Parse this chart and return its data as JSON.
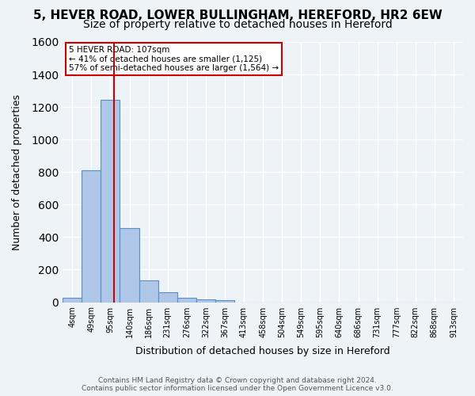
{
  "title_line1": "5, HEVER ROAD, LOWER BULLINGHAM, HEREFORD, HR2 6EW",
  "title_line2": "Size of property relative to detached houses in Hereford",
  "xlabel": "Distribution of detached houses by size in Hereford",
  "ylabel": "Number of detached properties",
  "footer_line1": "Contains HM Land Registry data © Crown copyright and database right 2024.",
  "footer_line2": "Contains public sector information licensed under the Open Government Licence v3.0.",
  "bin_labels": [
    "4sqm",
    "49sqm",
    "95sqm",
    "140sqm",
    "186sqm",
    "231sqm",
    "276sqm",
    "322sqm",
    "367sqm",
    "413sqm",
    "458sqm",
    "504sqm",
    "549sqm",
    "595sqm",
    "640sqm",
    "686sqm",
    "731sqm",
    "777sqm",
    "822sqm",
    "868sqm",
    "913sqm"
  ],
  "bar_values": [
    25,
    810,
    1245,
    455,
    135,
    60,
    25,
    15,
    12,
    0,
    0,
    0,
    0,
    0,
    0,
    0,
    0,
    0,
    0,
    0,
    0
  ],
  "bar_color": "#aec6e8",
  "bar_edge_color": "#5a8fc2",
  "property_line_x": 2.18,
  "property_line_color": "#cc0000",
  "annotation_text_line1": "5 HEVER ROAD: 107sqm",
  "annotation_text_line2": "← 41% of detached houses are smaller (1,125)",
  "annotation_text_line3": "57% of semi-detached houses are larger (1,564) →",
  "annotation_box_color": "#ffffff",
  "annotation_box_edge_color": "#cc0000",
  "ylim": [
    0,
    1600
  ],
  "yticks": [
    0,
    200,
    400,
    600,
    800,
    1000,
    1200,
    1400,
    1600
  ],
  "bg_color": "#eef3f8",
  "grid_color": "#ffffff",
  "title1_fontsize": 11,
  "title2_fontsize": 10
}
